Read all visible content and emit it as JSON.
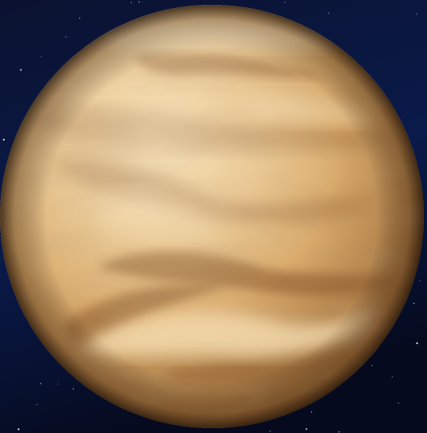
{
  "image": {
    "subject": "planet-with-cloud-bands",
    "colors": {
      "space_top": "#0b1230",
      "space_mid": "#0a1a4a",
      "space_bottom": "#050a1e",
      "planet_highlight": "#f4d9a6",
      "planet_mid": "#d9ab6c",
      "planet_shadow": "#8a5a2c",
      "cloud_dark": "#8c5b2f",
      "cloud_light": "#f7dfb3",
      "star": "#ffffff"
    }
  }
}
